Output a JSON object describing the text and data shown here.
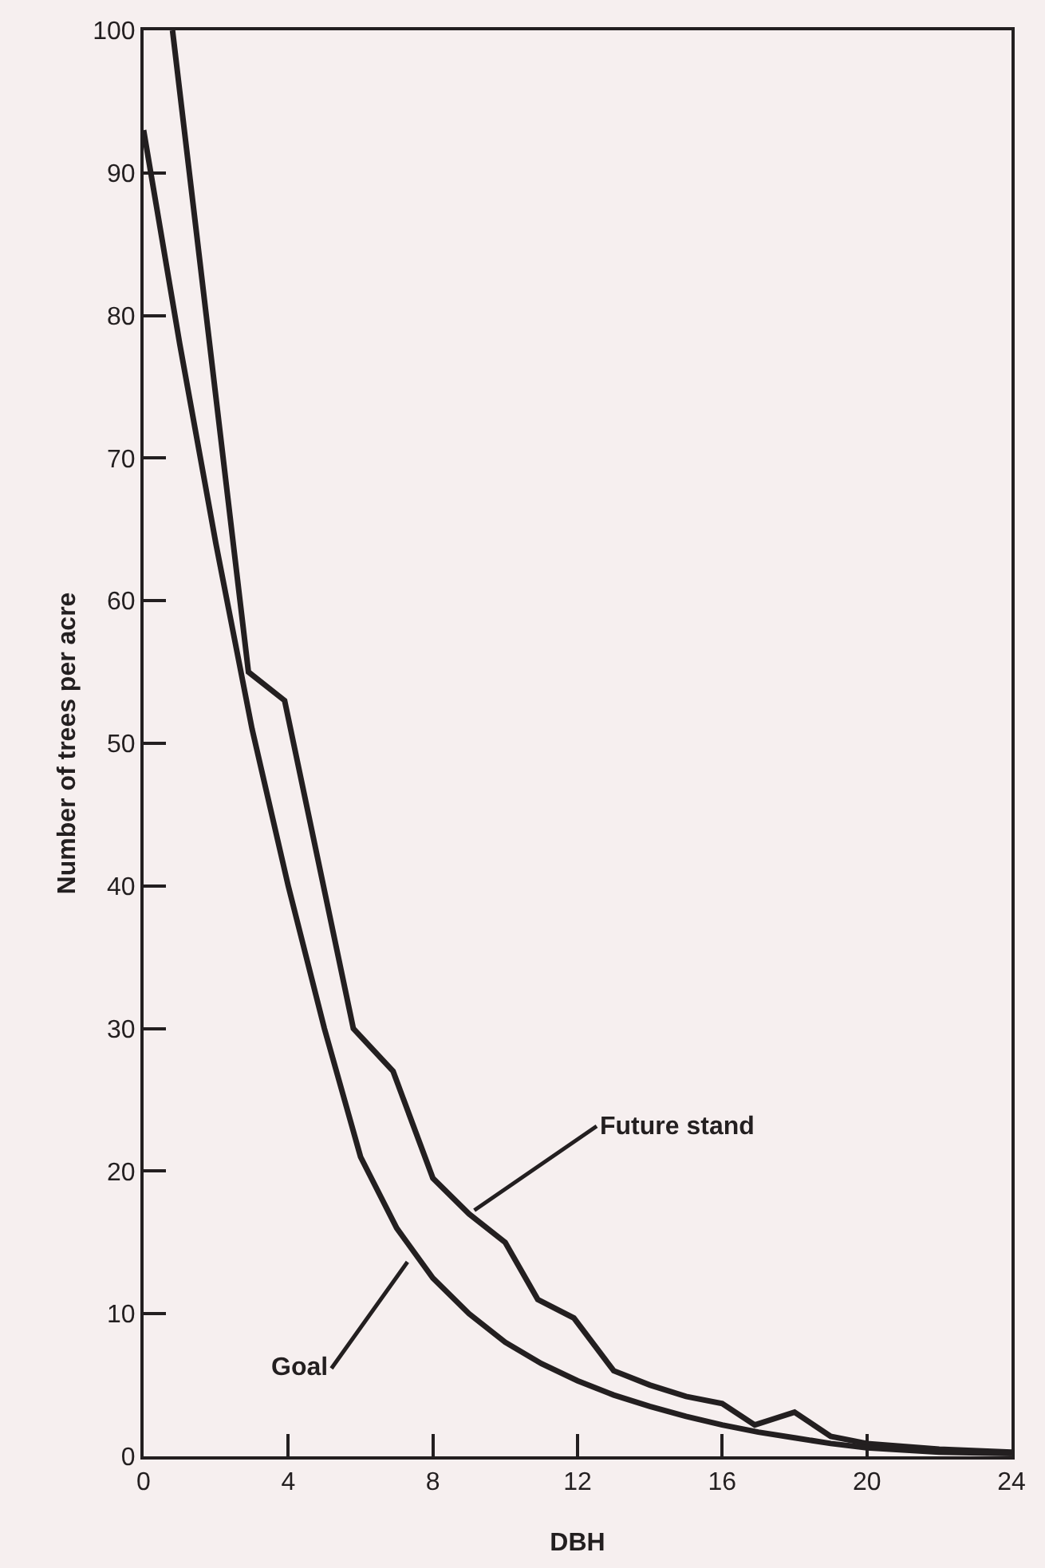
{
  "chart_data": {
    "type": "line",
    "xlabel": "DBH",
    "ylabel": "Number of trees per acre",
    "xlim": [
      0,
      24
    ],
    "xticks": [
      0,
      4,
      8,
      12,
      16,
      20,
      24
    ],
    "ylim": [
      0,
      100
    ],
    "yticks": [
      0,
      10,
      20,
      30,
      40,
      50,
      60,
      70,
      80,
      90,
      100
    ],
    "marker": "none",
    "line_style": "solid",
    "series": [
      {
        "color": "#231f20",
        "x": [
          0.8,
          2.9,
          3.9,
          5.8,
          6.9,
          8,
          9,
          10,
          10.9,
          11.9,
          13,
          14,
          15,
          16,
          16.9,
          18,
          19,
          20,
          22,
          24
        ],
        "values": [
          100,
          55,
          53,
          30,
          27,
          19.5,
          17,
          15,
          11,
          9.7,
          6,
          5,
          4.2,
          3.7,
          2.2,
          3.1,
          1.4,
          0.9,
          0.5,
          0.3
        ]
      },
      {
        "color": "#231f20",
        "x": [
          0,
          1,
          2,
          3,
          4,
          5,
          6,
          7,
          8,
          9,
          10,
          11,
          12,
          13,
          14,
          15,
          16,
          17,
          18,
          19,
          20,
          22,
          24
        ],
        "values": [
          93,
          78,
          64,
          51,
          40,
          30,
          21,
          16,
          12.5,
          10,
          8,
          6.5,
          5.3,
          4.3,
          3.5,
          2.8,
          2.2,
          1.7,
          1.3,
          0.9,
          0.6,
          0.3,
          0.2
        ]
      }
    ],
    "annotations": [
      {
        "text": "Future stand",
        "x": 9,
        "y": 17
      },
      {
        "text": "Goal",
        "x": 7.4,
        "y": 14
      }
    ]
  }
}
